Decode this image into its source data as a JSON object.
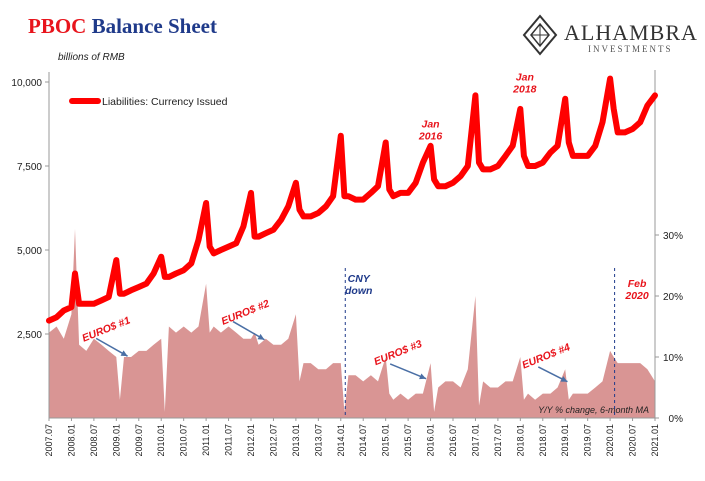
{
  "header": {
    "title_accent": "PBOC",
    "title_rest": "Balance Sheet",
    "units": "billions of RMB"
  },
  "logo": {
    "name": "ALHAMBRA",
    "sub": "INVESTMENTS"
  },
  "chart_data": {
    "type": "line",
    "left_axis": {
      "min": 0,
      "max": 10000,
      "ticks": [
        2500,
        5000,
        7500,
        10000
      ],
      "tick_labels": [
        "2,500",
        "5,000",
        "7,500",
        "10,000"
      ]
    },
    "right_axis": {
      "min": 0,
      "max": 0.55,
      "ticks": [
        0,
        0.1,
        0.2,
        0.3
      ],
      "tick_labels": [
        "0%",
        "10%",
        "20%",
        "30%"
      ],
      "label": "Y/Y % change, 6-month MA"
    },
    "x_labels": [
      "2007.07",
      "2008.01",
      "2008.07",
      "2009.01",
      "2009.07",
      "2010.01",
      "2010.07",
      "2011.01",
      "2011.07",
      "2012.01",
      "2012.07",
      "2013.01",
      "2013.07",
      "2014.01",
      "2014.07",
      "2015.01",
      "2015.07",
      "2016.01",
      "2016.07",
      "2017.01",
      "2017.07",
      "2018.01",
      "2018.07",
      "2019.01",
      "2019.07",
      "2020.01",
      "2020.07",
      "2021.01"
    ],
    "series": [
      {
        "name": "Liabilities: Currency Issued",
        "type": "line",
        "axis": "left",
        "color": "#ff0000",
        "x": [
          2007.5,
          2007.67,
          2007.83,
          2008.0,
          2008.08,
          2008.17,
          2008.33,
          2008.5,
          2008.67,
          2008.83,
          2009.0,
          2009.08,
          2009.17,
          2009.33,
          2009.5,
          2009.67,
          2009.83,
          2010.0,
          2010.08,
          2010.17,
          2010.33,
          2010.5,
          2010.67,
          2010.83,
          2011.0,
          2011.08,
          2011.17,
          2011.33,
          2011.5,
          2011.67,
          2011.83,
          2012.0,
          2012.08,
          2012.17,
          2012.33,
          2012.5,
          2012.67,
          2012.83,
          2013.0,
          2013.08,
          2013.17,
          2013.33,
          2013.5,
          2013.67,
          2013.83,
          2014.0,
          2014.08,
          2014.17,
          2014.33,
          2014.5,
          2014.67,
          2014.83,
          2015.0,
          2015.08,
          2015.17,
          2015.33,
          2015.5,
          2015.67,
          2015.83,
          2016.0,
          2016.08,
          2016.17,
          2016.33,
          2016.5,
          2016.67,
          2016.83,
          2017.0,
          2017.08,
          2017.17,
          2017.33,
          2017.5,
          2017.67,
          2017.83,
          2018.0,
          2018.08,
          2018.17,
          2018.33,
          2018.5,
          2018.67,
          2018.83,
          2019.0,
          2019.08,
          2019.17,
          2019.33,
          2019.5,
          2019.67,
          2019.83,
          2020.0,
          2020.08,
          2020.17,
          2020.33,
          2020.5,
          2020.67,
          2020.83,
          2021.0
        ],
        "values": [
          2900,
          3000,
          3200,
          3300,
          4300,
          3400,
          3400,
          3400,
          3500,
          3600,
          4700,
          3700,
          3700,
          3800,
          3900,
          4000,
          4300,
          4800,
          4200,
          4200,
          4300,
          4400,
          4600,
          5300,
          6400,
          5100,
          4900,
          5000,
          5100,
          5200,
          5700,
          6700,
          5400,
          5400,
          5500,
          5600,
          5900,
          6300,
          7000,
          6200,
          6000,
          6000,
          6100,
          6300,
          6600,
          8400,
          6600,
          6600,
          6500,
          6500,
          6700,
          6900,
          8200,
          6800,
          6600,
          6700,
          6700,
          7000,
          7600,
          8100,
          7100,
          6900,
          6900,
          7000,
          7200,
          7500,
          9600,
          7600,
          7400,
          7400,
          7500,
          7800,
          8100,
          9200,
          7800,
          7500,
          7500,
          7600,
          7900,
          8100,
          9500,
          8200,
          7800,
          7800,
          7800,
          8100,
          8800,
          10100,
          9200,
          8500,
          8500,
          8600,
          8800,
          9300,
          9600
        ]
      },
      {
        "name": "",
        "type": "area",
        "axis": "right",
        "color": "#d99594",
        "x": [
          2007.5,
          2007.67,
          2007.83,
          2008.0,
          2008.08,
          2008.17,
          2008.33,
          2008.5,
          2008.67,
          2008.83,
          2009.0,
          2009.08,
          2009.17,
          2009.33,
          2009.5,
          2009.67,
          2009.83,
          2010.0,
          2010.08,
          2010.17,
          2010.33,
          2010.5,
          2010.67,
          2010.83,
          2011.0,
          2011.08,
          2011.17,
          2011.33,
          2011.5,
          2011.67,
          2011.83,
          2012.0,
          2012.08,
          2012.17,
          2012.33,
          2012.5,
          2012.67,
          2012.83,
          2013.0,
          2013.08,
          2013.17,
          2013.33,
          2013.5,
          2013.67,
          2013.83,
          2014.0,
          2014.08,
          2014.17,
          2014.33,
          2014.5,
          2014.67,
          2014.83,
          2015.0,
          2015.08,
          2015.17,
          2015.33,
          2015.5,
          2015.67,
          2015.83,
          2016.0,
          2016.08,
          2016.17,
          2016.33,
          2016.5,
          2016.67,
          2016.83,
          2017.0,
          2017.08,
          2017.17,
          2017.33,
          2017.5,
          2017.67,
          2017.83,
          2018.0,
          2018.08,
          2018.17,
          2018.33,
          2018.5,
          2018.67,
          2018.83,
          2019.0,
          2019.08,
          2019.17,
          2019.33,
          2019.5,
          2019.67,
          2019.83,
          2020.0,
          2020.08,
          2020.17,
          2020.33,
          2020.5,
          2020.67,
          2020.83,
          2021.0
        ],
        "values": [
          0.14,
          0.15,
          0.13,
          0.17,
          0.31,
          0.12,
          0.11,
          0.13,
          0.12,
          0.11,
          0.1,
          0.03,
          0.1,
          0.1,
          0.11,
          0.11,
          0.12,
          0.13,
          0.01,
          0.15,
          0.14,
          0.15,
          0.14,
          0.15,
          0.22,
          0.14,
          0.15,
          0.14,
          0.15,
          0.14,
          0.13,
          0.13,
          0.14,
          0.12,
          0.13,
          0.12,
          0.12,
          0.13,
          0.17,
          0.06,
          0.09,
          0.09,
          0.08,
          0.08,
          0.09,
          0.09,
          0.01,
          0.07,
          0.07,
          0.06,
          0.07,
          0.06,
          0.1,
          0.04,
          0.03,
          0.04,
          0.03,
          0.04,
          0.04,
          0.09,
          0.01,
          0.05,
          0.06,
          0.06,
          0.05,
          0.08,
          0.2,
          0.02,
          0.06,
          0.05,
          0.05,
          0.06,
          0.06,
          0.1,
          0.03,
          0.04,
          0.03,
          0.04,
          0.04,
          0.05,
          0.08,
          0.03,
          0.04,
          0.04,
          0.04,
          0.05,
          0.06,
          0.11,
          0.1,
          0.09,
          0.09,
          0.09,
          0.09,
          0.08,
          0.06
        ]
      }
    ],
    "annotations": [
      {
        "text": "Jan\n2016",
        "x": 2016.0,
        "y": 8650,
        "color": "#e8141c"
      },
      {
        "text": "Jan\n2018",
        "x": 2018.1,
        "y": 10050,
        "color": "#e8141c"
      },
      {
        "text": "CNY\ndown",
        "x": 2014.4,
        "y": 4050,
        "color": "#1f3a8a"
      },
      {
        "text": "Feb\n2020",
        "x": 2020.6,
        "y": 3900,
        "color": "#e8141c"
      },
      {
        "text": "EURO$ #1",
        "x": 2008.8,
        "y": 2550,
        "color": "#e8141c"
      },
      {
        "text": "EURO$ #2",
        "x": 2011.9,
        "y": 3050,
        "color": "#e8141c"
      },
      {
        "text": "EURO$ #3",
        "x": 2015.3,
        "y": 1850,
        "color": "#e8141c"
      },
      {
        "text": "EURO$ #4",
        "x": 2018.6,
        "y": 1750,
        "color": "#e8141c"
      }
    ],
    "vlines": [
      2014.1,
      2020.1
    ],
    "legend": "top-left"
  }
}
